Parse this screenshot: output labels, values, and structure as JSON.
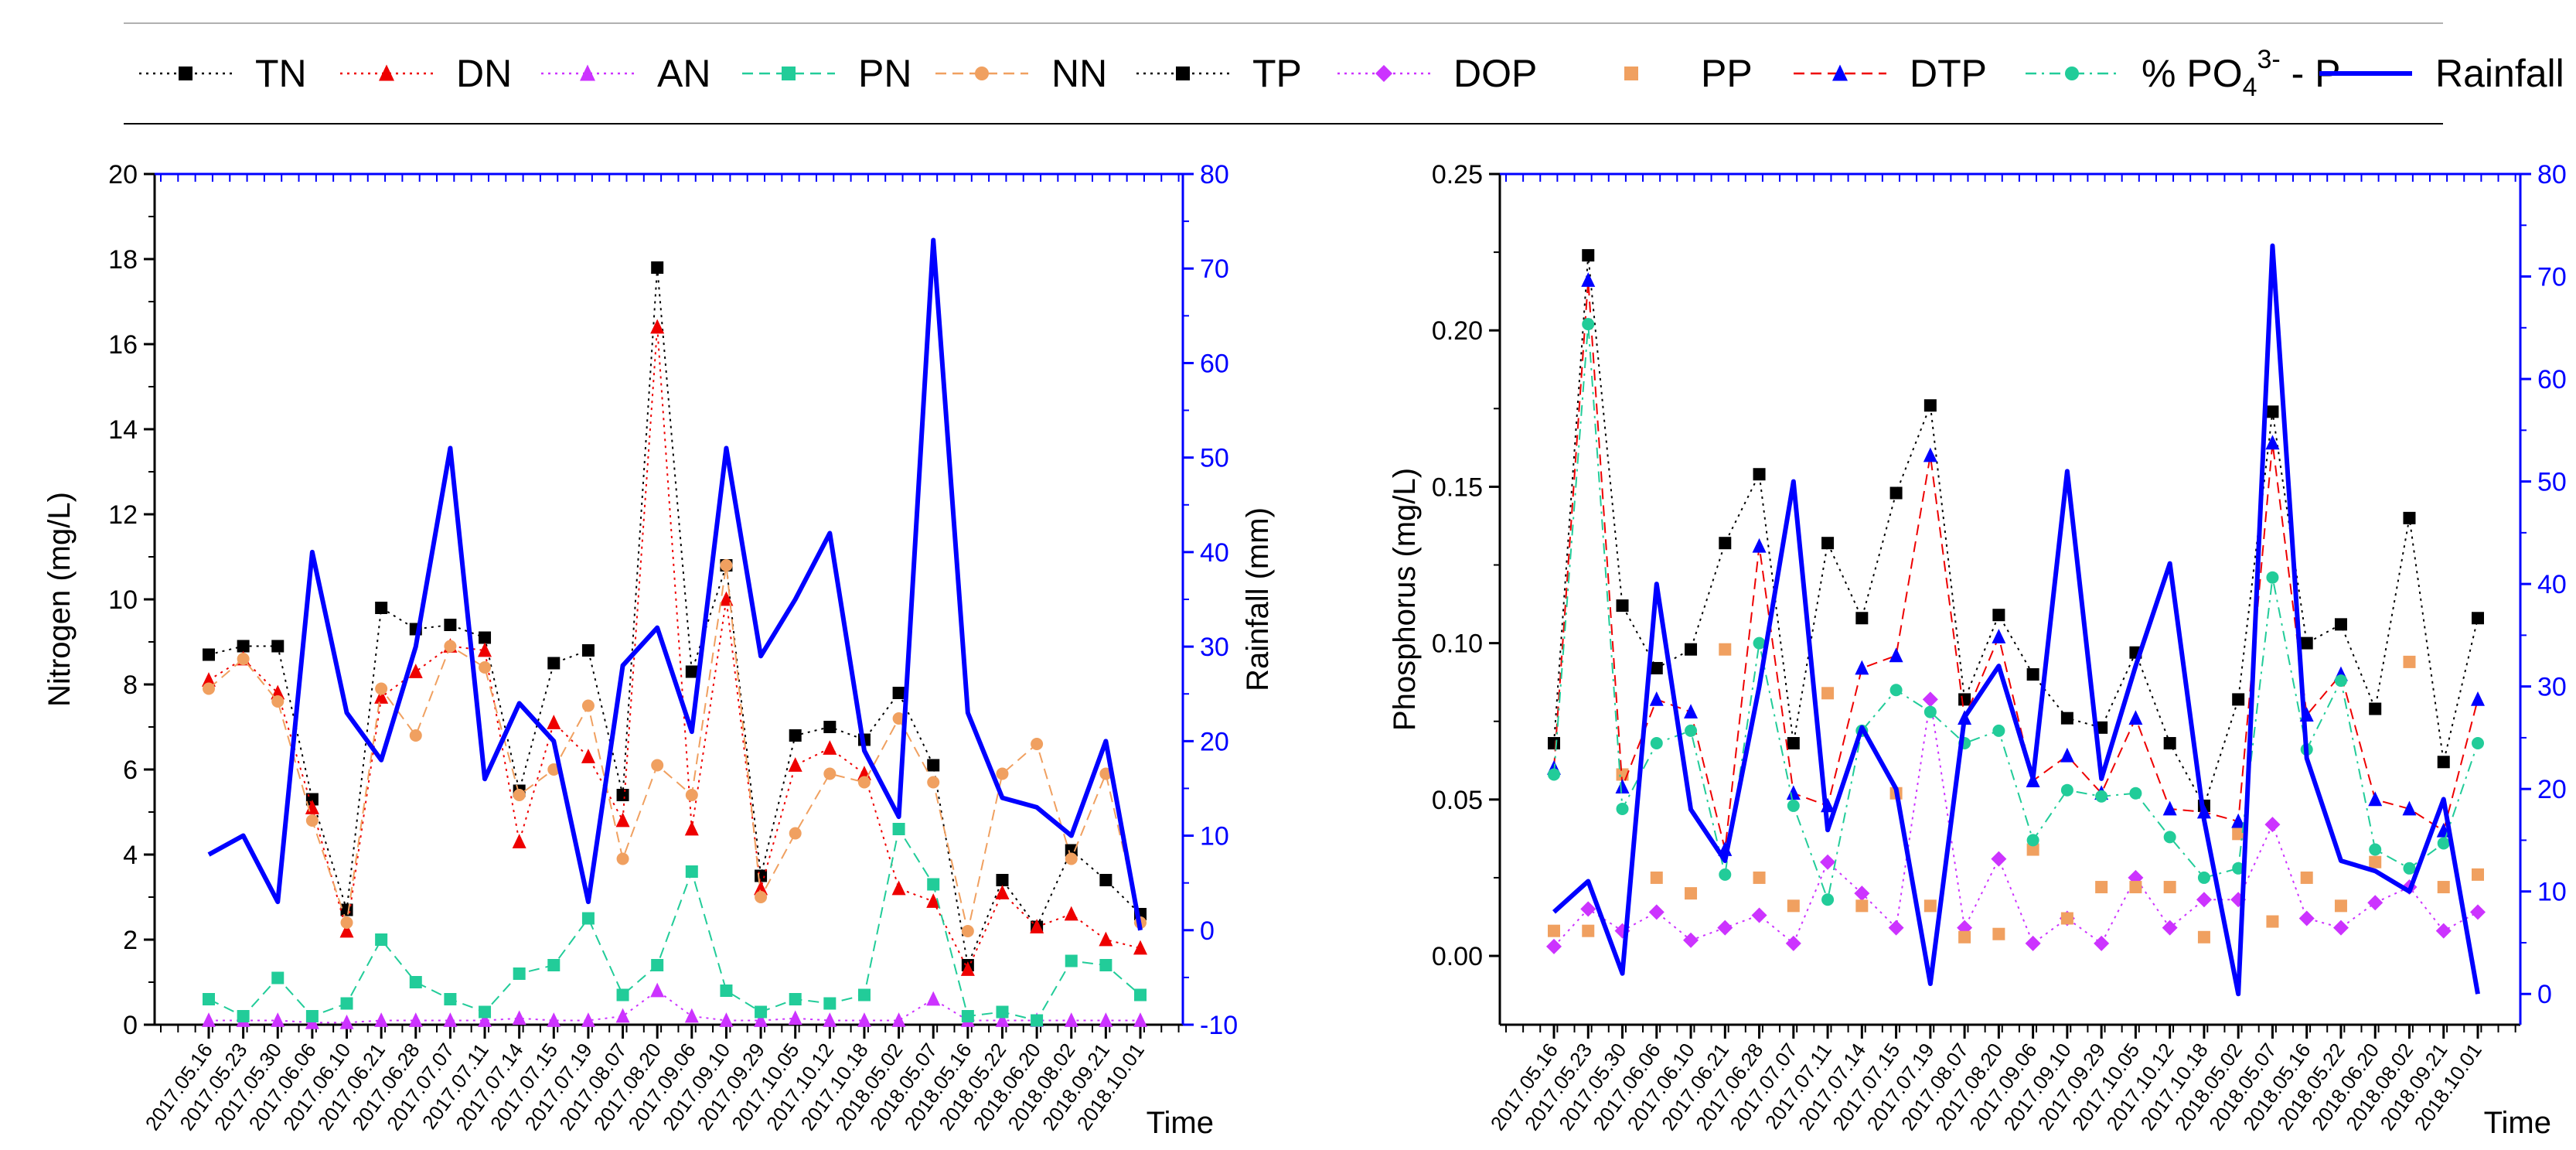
{
  "legend": [
    {
      "key": "TN",
      "label": "TN",
      "color": "#000000",
      "marker": "square",
      "dash": "dot"
    },
    {
      "key": "DN",
      "label": "DN",
      "color": "#ee0000",
      "marker": "triangle",
      "dash": "dot"
    },
    {
      "key": "AN",
      "label": "AN",
      "color": "#cc33ff",
      "marker": "triangle",
      "dash": "dot"
    },
    {
      "key": "PN",
      "label": "PN",
      "color": "#22cc99",
      "marker": "square",
      "dash": "dash"
    },
    {
      "key": "NN",
      "label": "NN",
      "color": "#f0a060",
      "marker": "circle",
      "dash": "dash"
    },
    {
      "key": "TP",
      "label": "TP",
      "color": "#000000",
      "marker": "square",
      "dash": "dot"
    },
    {
      "key": "DOP",
      "label": "DOP",
      "color": "#cc33ff",
      "marker": "diamond",
      "dash": "dot"
    },
    {
      "key": "PP",
      "label": "PP",
      "color": "#f0a060",
      "marker": "square",
      "dash": "none"
    },
    {
      "key": "DTP",
      "label": "DTP",
      "color": "#0000ff",
      "marker": "triangle",
      "dash": "dash",
      "lineColor": "#ee0000"
    },
    {
      "key": "PO4",
      "label_main": "% PO",
      "label_sub": "4",
      "label_sup": "3-",
      "label_tail": " - P",
      "color": "#22cc99",
      "marker": "circle",
      "dash": "dashdot"
    },
    {
      "key": "Rainfall",
      "label": "Rainfall",
      "color": "#0000ff",
      "marker": "none",
      "dash": "solid"
    }
  ],
  "chart_data": [
    {
      "type": "line",
      "name": "nitrogen",
      "title": "",
      "xlabel": "Time",
      "ylabel": "Nitrogen (mg/L)",
      "y2label": "Rainfall (mm)",
      "ylim": [
        0,
        20
      ],
      "yticks": [
        0,
        2,
        4,
        6,
        8,
        10,
        12,
        14,
        16,
        18,
        20
      ],
      "y2lim": [
        -10,
        80
      ],
      "y2ticks": [
        -10,
        0,
        10,
        20,
        30,
        40,
        50,
        60,
        70,
        80
      ],
      "categories": [
        "2017.05.16",
        "2017.05.23",
        "2017.05.30",
        "2017.06.06",
        "2017.06.10",
        "2017.06.21",
        "2017.06.28",
        "2017.07.07",
        "2017.07.11",
        "2017.07.14",
        "2017.07.15",
        "2017.07.19",
        "2017.08.07",
        "2017.08.20",
        "2017.09.06",
        "2017.09.10",
        "2017.09.29",
        "2017.10.05",
        "2017.10.12",
        "2017.10.18",
        "2018.05.02",
        "2018.05.07",
        "2018.05.16",
        "2018.05.22",
        "2018.06.20",
        "2018.08.02",
        "2018.09.21",
        "2018.10.01"
      ],
      "series": [
        {
          "key": "TN",
          "values": [
            8.7,
            8.9,
            8.9,
            5.3,
            2.7,
            9.8,
            9.3,
            9.4,
            9.1,
            5.5,
            8.5,
            8.8,
            5.4,
            17.8,
            8.3,
            10.8,
            3.5,
            6.8,
            7.0,
            6.7,
            7.8,
            6.1,
            1.4,
            3.4,
            2.3,
            4.1,
            3.4,
            2.6
          ]
        },
        {
          "key": "DN",
          "values": [
            8.1,
            8.6,
            7.8,
            5.1,
            2.2,
            7.7,
            8.3,
            8.9,
            8.8,
            4.3,
            7.1,
            6.3,
            4.8,
            16.4,
            4.6,
            10.0,
            3.2,
            6.1,
            6.5,
            5.9,
            3.2,
            2.9,
            1.3,
            3.1,
            2.3,
            2.6,
            2.0,
            1.8
          ]
        },
        {
          "key": "AN",
          "values": [
            0.1,
            0.1,
            0.1,
            0.05,
            0.05,
            0.1,
            0.1,
            0.1,
            0.1,
            0.15,
            0.1,
            0.1,
            0.2,
            0.8,
            0.2,
            0.1,
            0.1,
            0.15,
            0.1,
            0.1,
            0.1,
            0.6,
            0.1,
            0.1,
            0.1,
            0.1,
            0.1,
            0.1
          ]
        },
        {
          "key": "PN",
          "values": [
            0.6,
            0.2,
            1.1,
            0.2,
            0.5,
            2.0,
            1.0,
            0.6,
            0.3,
            1.2,
            1.4,
            2.5,
            0.7,
            1.4,
            3.6,
            0.8,
            0.3,
            0.6,
            0.5,
            0.7,
            4.6,
            3.3,
            0.2,
            0.3,
            0.1,
            1.5,
            1.4,
            0.7
          ]
        },
        {
          "key": "NN",
          "values": [
            7.9,
            8.6,
            7.6,
            4.8,
            2.4,
            7.9,
            6.8,
            8.9,
            8.4,
            5.4,
            6.0,
            7.5,
            3.9,
            6.1,
            5.4,
            10.8,
            3.0,
            4.5,
            5.9,
            5.7,
            7.2,
            5.7,
            2.2,
            5.9,
            6.6,
            3.9,
            5.9,
            2.4
          ]
        }
      ],
      "rainfall": [
        8,
        10,
        3,
        40,
        23,
        18,
        30,
        51,
        16,
        24,
        20,
        3,
        28,
        32,
        21,
        51,
        29,
        35,
        42,
        19,
        12,
        73,
        23,
        14,
        13,
        10,
        20,
        0
      ]
    },
    {
      "type": "line",
      "name": "phosphorus",
      "title": "",
      "xlabel": "Time",
      "ylabel": "Phosphorus (mg/L)",
      "y2label": "Rainfall (mm)",
      "ylim": [
        -0.022,
        0.25
      ],
      "yticks": [
        0.0,
        0.05,
        0.1,
        0.15,
        0.2,
        0.25
      ],
      "ytick_labels": [
        "0.00",
        "0.05",
        "0.10",
        "0.15",
        "0.20",
        "0.25"
      ],
      "y2lim": [
        -3,
        80
      ],
      "y2ticks": [
        0,
        10,
        20,
        30,
        40,
        50,
        60,
        70,
        80
      ],
      "categories": [
        "2017.05.16",
        "2017.05.23",
        "2017.05.30",
        "2017.06.06",
        "2017.06.10",
        "2017.06.21",
        "2017.06.28",
        "2017.07.07",
        "2017.07.11",
        "2017.07.14",
        "2017.07.15",
        "2017.07.19",
        "2017.08.07",
        "2017.08.20",
        "2017.09.06",
        "2017.09.10",
        "2017.09.29",
        "2017.10.05",
        "2017.10.12",
        "2017.10.18",
        "2018.05.02",
        "2018.05.07",
        "2018.05.16",
        "2018.05.22",
        "2018.06.20",
        "2018.08.02",
        "2018.09.21",
        "2018.10.01"
      ],
      "series": [
        {
          "key": "TP",
          "values": [
            0.068,
            0.224,
            0.112,
            0.092,
            0.098,
            0.132,
            0.154,
            0.068,
            0.132,
            0.108,
            0.148,
            0.176,
            0.082,
            0.109,
            0.09,
            0.076,
            0.073,
            0.097,
            0.068,
            0.048,
            0.082,
            0.174,
            0.1,
            0.106,
            0.079,
            0.14,
            0.062,
            0.108
          ]
        },
        {
          "key": "DOP",
          "values": [
            0.003,
            0.015,
            0.008,
            0.014,
            0.005,
            0.009,
            0.013,
            0.004,
            0.03,
            0.02,
            0.009,
            0.082,
            0.009,
            0.031,
            0.004,
            0.012,
            0.004,
            0.025,
            0.009,
            0.018,
            0.018,
            0.042,
            0.012,
            0.009,
            0.017,
            0.022,
            0.008,
            0.014
          ]
        },
        {
          "key": "PP",
          "values": [
            0.008,
            0.008,
            0.058,
            0.025,
            0.02,
            0.098,
            0.025,
            0.016,
            0.084,
            0.016,
            0.052,
            0.016,
            0.006,
            0.007,
            0.034,
            0.012,
            0.022,
            0.022,
            0.022,
            0.006,
            0.039,
            0.011,
            0.025,
            0.016,
            0.03,
            0.094,
            0.022,
            0.026
          ]
        },
        {
          "key": "DTP",
          "values": [
            0.06,
            0.216,
            0.054,
            0.082,
            0.078,
            0.034,
            0.131,
            0.052,
            0.048,
            0.092,
            0.096,
            0.16,
            0.076,
            0.102,
            0.056,
            0.064,
            0.052,
            0.076,
            0.047,
            0.046,
            0.043,
            0.164,
            0.077,
            0.09,
            0.05,
            0.047,
            0.04,
            0.082
          ]
        },
        {
          "key": "PO4",
          "values": [
            0.058,
            0.202,
            0.047,
            0.068,
            0.072,
            0.026,
            0.1,
            0.048,
            0.018,
            0.072,
            0.085,
            0.078,
            0.068,
            0.072,
            0.037,
            0.053,
            0.051,
            0.052,
            0.038,
            0.025,
            0.028,
            0.121,
            0.066,
            0.088,
            0.034,
            0.028,
            0.036,
            0.068
          ]
        }
      ],
      "rainfall": [
        8,
        11,
        2,
        40,
        18,
        13,
        30,
        50,
        16,
        26,
        20,
        1,
        27,
        32,
        21,
        51,
        21,
        32,
        42,
        17,
        0,
        73,
        23,
        13,
        12,
        10,
        19,
        0
      ]
    }
  ]
}
